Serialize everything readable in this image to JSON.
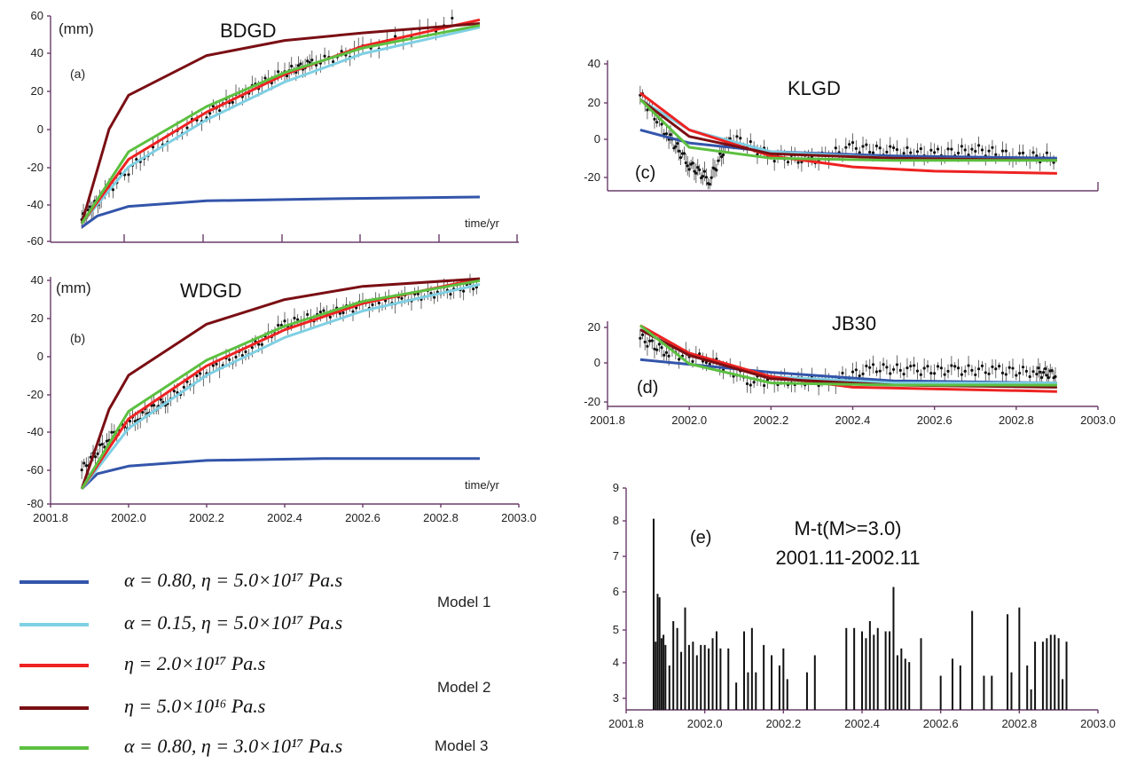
{
  "colors": {
    "model1_alpha080": "#3355aa",
    "model1_alpha015": "#7fd0e4",
    "model2_eta2e17": "#ee2222",
    "model2_eta5e16": "#7a0f14",
    "model3": "#5cc040",
    "data": "#111111",
    "axis": "#6a3d6a"
  },
  "legend": [
    {
      "formula": "α = 0.80, η = 5.0×10¹⁷ Pa.s",
      "color": "#3355aa"
    },
    {
      "formula": "α = 0.15, η = 5.0×10¹⁷ Pa.s",
      "color": "#7fd0e4"
    },
    {
      "formula": "η = 2.0×10¹⁷ Pa.s",
      "color": "#ee2222"
    },
    {
      "formula": "η = 5.0×10¹⁶ Pa.s",
      "color": "#7a0f14"
    },
    {
      "formula": "α = 0.80, η = 3.0×10¹⁷ Pa.s",
      "color": "#5cc040"
    }
  ],
  "model_labels": [
    "Model 1",
    "Model 2",
    "Model 3"
  ],
  "chart_data": [
    {
      "type": "line",
      "title": "BDGD",
      "panel_label": "(a)",
      "unit_label": "(mm)",
      "xlabel": "time/yr",
      "xlim": [
        2001.8,
        2003.0
      ],
      "ylim": [
        -60,
        60
      ],
      "yticks": [
        "60",
        "40",
        "20",
        "0",
        "-20",
        "-40",
        "-60"
      ],
      "series": [
        {
          "color": "#3355aa",
          "x": [
            2001.88,
            2001.92,
            2002.0,
            2002.2,
            2002.5,
            2002.9
          ],
          "y": [
            -52,
            -46,
            -41,
            -38,
            -37,
            -36
          ]
        },
        {
          "color": "#7fd0e4",
          "x": [
            2001.88,
            2002.0,
            2002.2,
            2002.4,
            2002.6,
            2002.9
          ],
          "y": [
            -50,
            -20,
            5,
            25,
            40,
            54
          ]
        },
        {
          "color": "#ee2222",
          "x": [
            2001.88,
            2002.0,
            2002.2,
            2002.4,
            2002.6,
            2002.9
          ],
          "y": [
            -50,
            -16,
            9,
            29,
            44,
            58
          ]
        },
        {
          "color": "#7a0f14",
          "x": [
            2001.88,
            2001.95,
            2002.0,
            2002.2,
            2002.4,
            2002.6,
            2002.9
          ],
          "y": [
            -50,
            0,
            18,
            39,
            47,
            51,
            56
          ]
        },
        {
          "color": "#5cc040",
          "x": [
            2001.88,
            2002.0,
            2002.2,
            2002.4,
            2002.6,
            2002.9
          ],
          "y": [
            -50,
            -12,
            12,
            30,
            43,
            55
          ]
        }
      ],
      "observations": {
        "x": [
          2001.88,
          2001.93,
          2002.05,
          2002.2,
          2002.3,
          2002.4,
          2002.47,
          2002.6,
          2002.85
        ],
        "y": [
          -48,
          -36,
          -12,
          8,
          20,
          30,
          35,
          42,
          58
        ]
      }
    },
    {
      "type": "line",
      "title": "WDGD",
      "panel_label": "(b)",
      "unit_label": "(mm)",
      "xlabel": "time/yr",
      "xlim": [
        2001.8,
        2003.0
      ],
      "ylim": [
        -80,
        40
      ],
      "xticks": [
        "2001.8",
        "2002.0",
        "2002.2",
        "2002.4",
        "2002.6",
        "2002.8",
        "2003.0"
      ],
      "yticks": [
        "40",
        "20",
        "0",
        "-20",
        "-40",
        "-60",
        "-80"
      ],
      "series": [
        {
          "color": "#3355aa",
          "x": [
            2001.88,
            2001.92,
            2002.0,
            2002.2,
            2002.5,
            2002.9
          ],
          "y": [
            -72,
            -64,
            -60,
            -57,
            -56,
            -56
          ]
        },
        {
          "color": "#7fd0e4",
          "x": [
            2001.88,
            2002.0,
            2002.2,
            2002.4,
            2002.6,
            2002.9
          ],
          "y": [
            -72,
            -40,
            -12,
            8,
            22,
            36
          ]
        },
        {
          "color": "#ee2222",
          "x": [
            2001.88,
            2002.0,
            2002.2,
            2002.4,
            2002.6,
            2002.9
          ],
          "y": [
            -72,
            -35,
            -7,
            12,
            26,
            39
          ]
        },
        {
          "color": "#7a0f14",
          "x": [
            2001.88,
            2001.95,
            2002.0,
            2002.2,
            2002.4,
            2002.6,
            2002.9
          ],
          "y": [
            -72,
            -30,
            -12,
            15,
            28,
            35,
            39
          ]
        },
        {
          "color": "#5cc040",
          "x": [
            2001.88,
            2002.0,
            2002.2,
            2002.4,
            2002.6,
            2002.9
          ],
          "y": [
            -72,
            -31,
            -4,
            14,
            27,
            38
          ]
        }
      ],
      "observations": {
        "x": [
          2001.88,
          2001.95,
          2002.03,
          2002.1,
          2002.2,
          2002.3,
          2002.4,
          2002.5,
          2002.6,
          2002.7,
          2002.8,
          2002.9
        ],
        "y": [
          -62,
          -45,
          -33,
          -25,
          -10,
          0,
          15,
          20,
          25,
          28,
          32,
          36
        ]
      }
    },
    {
      "type": "line",
      "title": "KLGD",
      "panel_label": "(c)",
      "xlim": [
        2001.8,
        2003.0
      ],
      "ylim": [
        -20,
        40
      ],
      "yticks": [
        "40",
        "20",
        "0",
        "-20"
      ],
      "series": [
        {
          "color": "#3355aa",
          "x": [
            2001.88,
            2002.0,
            2002.2,
            2002.5,
            2002.9
          ],
          "y": [
            8,
            2,
            -2,
            -4,
            -5
          ]
        },
        {
          "color": "#7fd0e4",
          "x": [
            2001.88,
            2002.0,
            2002.2,
            2002.5,
            2002.9
          ],
          "y": [
            22,
            8,
            -2,
            -5,
            -6
          ]
        },
        {
          "color": "#ee2222",
          "x": [
            2001.88,
            2002.0,
            2002.2,
            2002.4,
            2002.6,
            2002.9
          ],
          "y": [
            25,
            8,
            -4,
            -9,
            -11,
            -12
          ]
        },
        {
          "color": "#7a0f14",
          "x": [
            2001.88,
            2002.0,
            2002.2,
            2002.5,
            2002.9
          ],
          "y": [
            22,
            5,
            -3,
            -5,
            -6
          ]
        },
        {
          "color": "#5cc040",
          "x": [
            2001.88,
            2002.0,
            2002.2,
            2002.5,
            2002.9
          ],
          "y": [
            22,
            0,
            -5,
            -6,
            -6
          ]
        }
      ],
      "observations": {
        "x": [
          2001.88,
          2001.95,
          2002.0,
          2002.05,
          2002.1,
          2002.2,
          2002.3,
          2002.4,
          2002.5,
          2002.6,
          2002.7,
          2002.8,
          2002.9
        ],
        "y": [
          24,
          5,
          -8,
          -15,
          5,
          -4,
          -6,
          0,
          -2,
          -3,
          -1,
          -4,
          -5
        ]
      }
    },
    {
      "type": "line",
      "title": "JB30",
      "panel_label": "(d)",
      "xlim": [
        2001.8,
        2003.0
      ],
      "ylim": [
        -20,
        20
      ],
      "xticks": [
        "2001.8",
        "2002.0",
        "2002.2",
        "2002.4",
        "2002.6",
        "2002.8",
        "2003.0"
      ],
      "yticks": [
        "20",
        "0",
        "-20"
      ],
      "series": [
        {
          "color": "#3355aa",
          "x": [
            2001.88,
            2002.2,
            2002.5,
            2002.9
          ],
          "y": [
            2,
            -4,
            -8,
            -9
          ]
        },
        {
          "color": "#7fd0e4",
          "x": [
            2001.88,
            2002.0,
            2002.2,
            2002.5,
            2002.9
          ],
          "y": [
            16,
            4,
            -6,
            -9,
            -9
          ]
        },
        {
          "color": "#ee2222",
          "x": [
            2001.88,
            2002.0,
            2002.2,
            2002.4,
            2002.9
          ],
          "y": [
            18,
            5,
            -6,
            -11,
            -13
          ]
        },
        {
          "color": "#7a0f14",
          "x": [
            2001.88,
            2002.0,
            2002.2,
            2002.5,
            2002.9
          ],
          "y": [
            16,
            4,
            -7,
            -10,
            -11
          ]
        },
        {
          "color": "#5cc040",
          "x": [
            2001.88,
            2002.0,
            2002.2,
            2002.5,
            2002.9
          ],
          "y": [
            18,
            0,
            -9,
            -10,
            -10
          ]
        }
      ],
      "observations": {
        "x": [
          2001.88,
          2001.95,
          2002.05,
          2002.15,
          2002.25,
          2002.35,
          2002.45,
          2002.55,
          2002.65,
          2002.75,
          2002.85,
          2002.9
        ],
        "y": [
          12,
          5,
          2,
          -8,
          -8,
          -8,
          -2,
          -3,
          -3,
          -3,
          -4,
          -5
        ]
      }
    },
    {
      "type": "bar",
      "title": "M-t(M>=3.0)",
      "subtitle": "2001.11-2002.11",
      "panel_label": "(e)",
      "xlim": [
        2001.8,
        2003.0
      ],
      "ylim": [
        2.5,
        9
      ],
      "xticks": [
        "2001.8",
        "2002.0",
        "2002.2",
        "2002.4",
        "2002.6",
        "2002.8",
        "2003.0"
      ],
      "yticks": [
        "9",
        "8",
        "7",
        "6",
        "5",
        "4",
        "3"
      ],
      "x": [
        2001.87,
        2001.875,
        2001.88,
        2001.885,
        2001.89,
        2001.895,
        2001.9,
        2001.91,
        2001.92,
        2001.93,
        2001.94,
        2001.95,
        2001.96,
        2001.97,
        2001.98,
        2001.99,
        2002.0,
        2002.01,
        2002.02,
        2002.03,
        2002.04,
        2002.06,
        2002.08,
        2002.1,
        2002.11,
        2002.12,
        2002.13,
        2002.15,
        2002.17,
        2002.19,
        2002.2,
        2002.21,
        2002.26,
        2002.28,
        2002.36,
        2002.38,
        2002.4,
        2002.41,
        2002.42,
        2002.43,
        2002.44,
        2002.46,
        2002.47,
        2002.48,
        2002.49,
        2002.5,
        2002.51,
        2002.52,
        2002.55,
        2002.6,
        2002.63,
        2002.65,
        2002.68,
        2002.71,
        2002.73,
        2002.77,
        2002.78,
        2002.8,
        2002.82,
        2002.83,
        2002.84,
        2002.86,
        2002.87,
        2002.88,
        2002.89,
        2002.9,
        2002.91,
        2002.92
      ],
      "values": [
        8.1,
        4.5,
        5.9,
        5.8,
        4.6,
        4.7,
        4.4,
        3.8,
        5.1,
        4.9,
        4.2,
        5.5,
        4.4,
        4.5,
        4.1,
        4.4,
        4.4,
        4.3,
        4.6,
        4.8,
        4.3,
        4.3,
        3.3,
        4.8,
        3.6,
        4.9,
        3.6,
        4.4,
        4.1,
        3.8,
        4.3,
        3.4,
        3.6,
        4.1,
        4.9,
        4.9,
        4.8,
        4.6,
        5.1,
        4.7,
        4.9,
        4.8,
        4.8,
        6.1,
        4.1,
        4.3,
        4.0,
        3.9,
        4.6,
        3.5,
        4.0,
        3.8,
        5.4,
        3.5,
        3.5,
        5.3,
        3.6,
        5.5,
        3.8,
        3.1,
        4.5,
        4.5,
        4.6,
        4.7,
        4.7,
        4.6,
        3.4,
        4.5
      ]
    }
  ]
}
